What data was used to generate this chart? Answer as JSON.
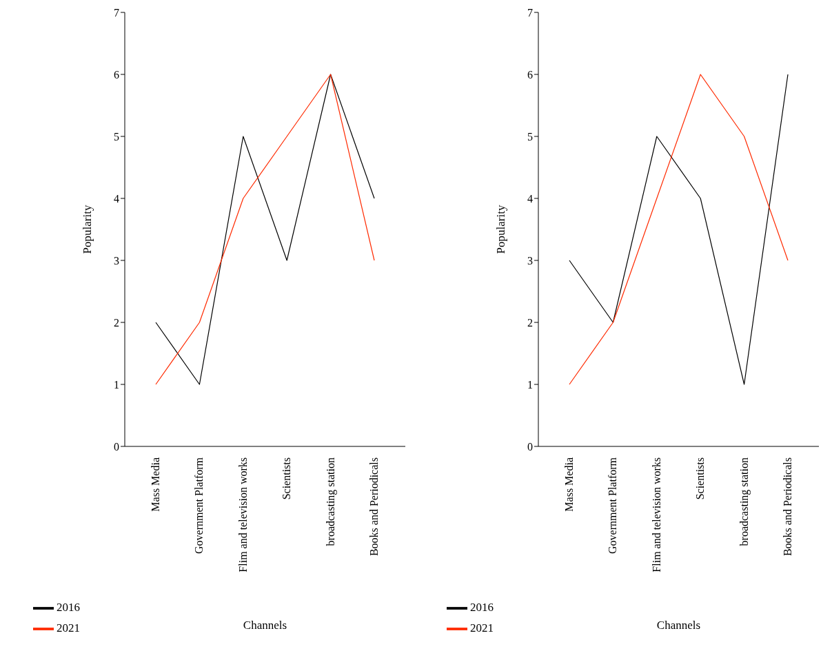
{
  "chart_data": [
    {
      "type": "line",
      "xlabel": "Channels",
      "ylabel": "Popularity",
      "categories": [
        "Mass Media",
        "Government Platform",
        "Flim and television works",
        "Scientists",
        "broadcasting station",
        "Books and Periodicals"
      ],
      "series": [
        {
          "name": "2016",
          "color": "#000000",
          "values": [
            2,
            1,
            5,
            3,
            6,
            4
          ]
        },
        {
          "name": "2021",
          "color": "#ff2a00",
          "values": [
            1,
            2,
            4,
            5,
            6,
            3
          ]
        }
      ],
      "ylim": [
        0,
        7
      ],
      "yticks": [
        0,
        1,
        2,
        3,
        4,
        5,
        6,
        7
      ],
      "grid": false,
      "legend": "bottom left"
    },
    {
      "type": "line",
      "xlabel": "Channels",
      "ylabel": "Popularity",
      "categories": [
        "Mass Media",
        "Government Platform",
        "Flim and television works",
        "Scientists",
        "broadcasting station",
        "Books and Periodicals"
      ],
      "series": [
        {
          "name": "2016",
          "color": "#000000",
          "values": [
            3,
            2,
            5,
            4,
            1,
            6
          ]
        },
        {
          "name": "2021",
          "color": "#ff2a00",
          "values": [
            1,
            2,
            4,
            6,
            5,
            3
          ]
        }
      ],
      "ylim": [
        0,
        7
      ],
      "yticks": [
        0,
        1,
        2,
        3,
        4,
        5,
        6,
        7
      ],
      "grid": false,
      "legend": "bottom left"
    }
  ]
}
